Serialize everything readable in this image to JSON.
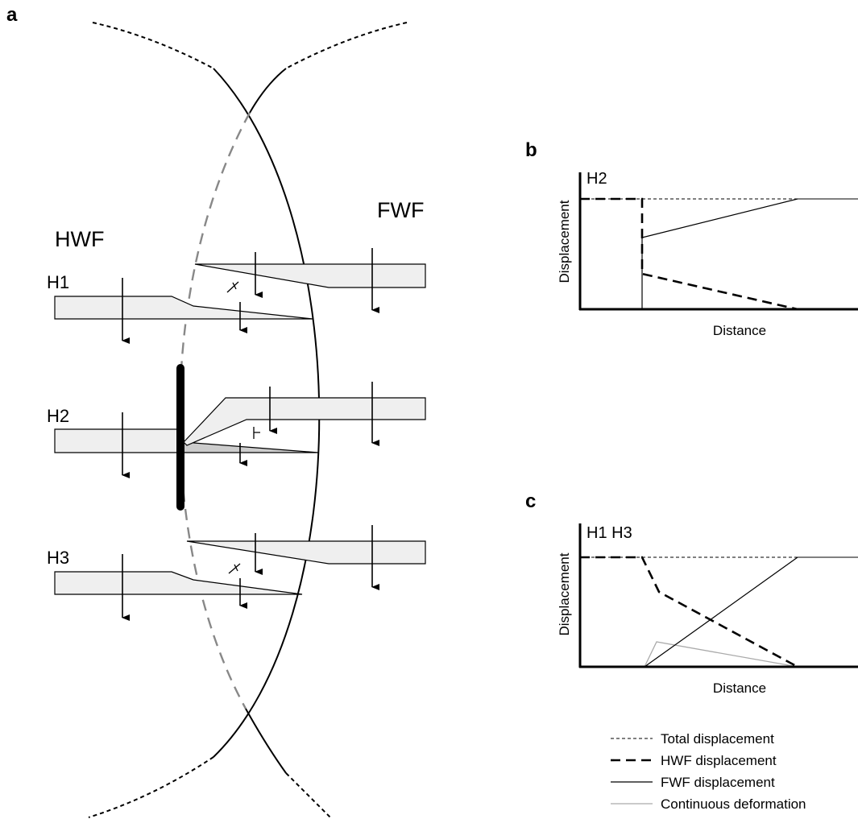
{
  "panels": {
    "a": {
      "label": "a",
      "hwf": "HWF",
      "fwf": "FWF",
      "horizons": [
        "H1",
        "H2",
        "H3"
      ]
    },
    "b": {
      "label": "b",
      "horizon": "H2",
      "y_axis": "Displacement",
      "x_axis": "Distance"
    },
    "c": {
      "label": "c",
      "horizon": "H1 H3",
      "y_axis": "Displacement",
      "x_axis": "Distance"
    }
  },
  "legend": [
    "Total displacement",
    "HWF displacement",
    "FWF displacement",
    "Continuous deformation"
  ]
}
